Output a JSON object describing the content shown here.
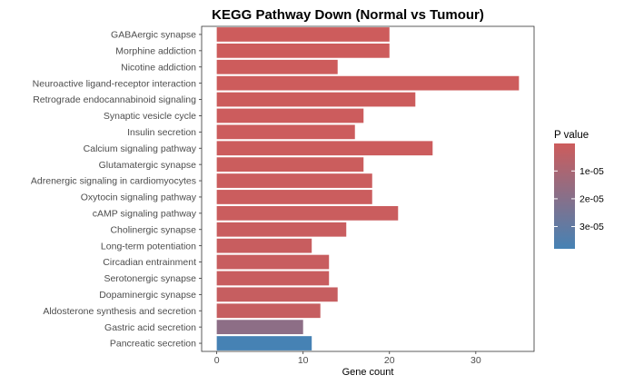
{
  "chart_data": {
    "type": "bar",
    "orientation": "horizontal",
    "title": "KEGG Pathway Down (Normal vs Tumour)",
    "xlabel": "Gene count",
    "ylabel": "",
    "xlim": [
      -1.75,
      36.75
    ],
    "xticks": [
      0,
      10,
      20,
      30
    ],
    "grid": false,
    "legend": {
      "title": "P value",
      "placement": "right",
      "type": "gradient",
      "range": [
        1e-07,
        3.8e-05
      ],
      "ticks": [
        {
          "value": 1e-05,
          "label": "1e-05"
        },
        {
          "value": 2e-05,
          "label": "2e-05"
        },
        {
          "value": 3e-05,
          "label": "3e-05"
        }
      ],
      "low_color": "#cd5c5c",
      "high_color": "#4682b4"
    },
    "categories": [
      "GABAergic synapse",
      "Morphine addiction",
      "Nicotine addiction",
      "Neuroactive ligand-receptor interaction",
      "Retrograde endocannabinoid signaling",
      "Synaptic vesicle cycle",
      "Insulin secretion",
      "Calcium signaling pathway",
      "Glutamatergic synapse",
      "Adrenergic signaling in cardiomyocytes",
      "Oxytocin signaling pathway",
      "cAMP signaling pathway",
      "Cholinergic synapse",
      "Long-term potentiation",
      "Circadian entrainment",
      "Serotonergic synapse",
      "Dopaminergic synapse",
      "Aldosterone synthesis and secretion",
      "Gastric acid secretion",
      "Pancreatic secretion"
    ],
    "values": [
      20,
      20,
      14,
      35,
      23,
      17,
      16,
      25,
      17,
      18,
      18,
      21,
      15,
      11,
      13,
      13,
      14,
      12,
      10,
      11
    ],
    "pvalues": [
      1e-07,
      1e-07,
      2e-07,
      2e-07,
      3e-07,
      4e-07,
      5e-07,
      5e-07,
      6e-07,
      8e-07,
      8e-07,
      1e-06,
      1.2e-06,
      1.5e-06,
      1.5e-06,
      1.5e-06,
      2e-06,
      2e-06,
      1.8e-05,
      3.8e-05
    ]
  }
}
